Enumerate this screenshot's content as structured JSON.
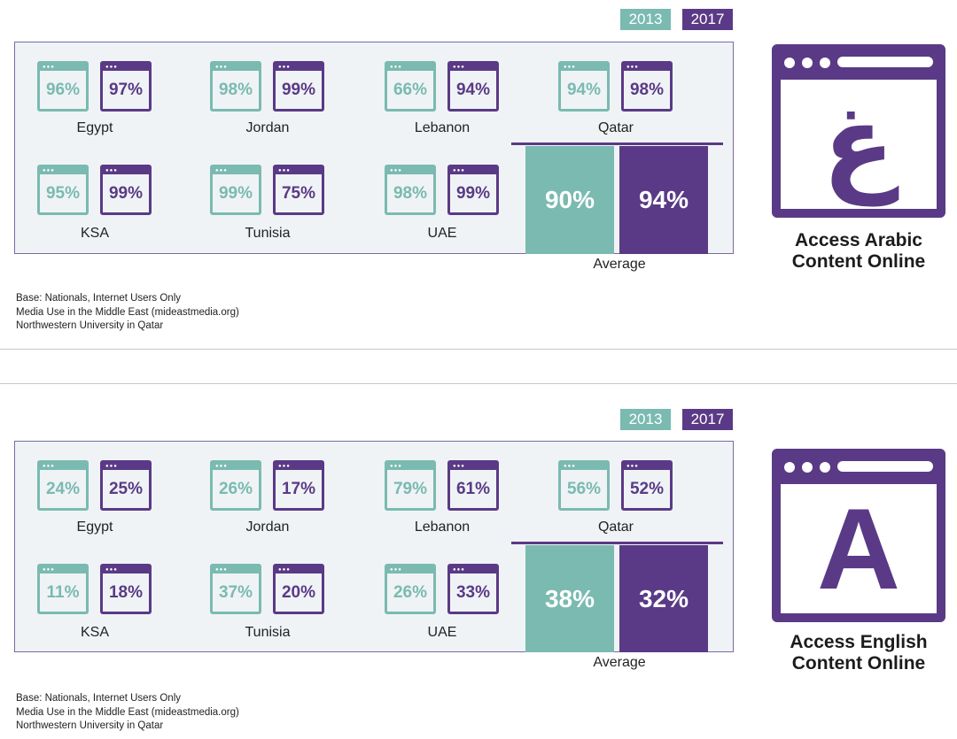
{
  "legend": {
    "year_a": "2013",
    "year_b": "2017"
  },
  "colors": {
    "teal": "#7abab1",
    "purple": "#5a3a86"
  },
  "source_note": [
    "Base: Nationals, Internet Users Only",
    "Media Use in the Middle East (mideastmedia.org)",
    "Northwestern University in Qatar"
  ],
  "chart_data": [
    {
      "type": "bar",
      "title": "Access Arabic Content Online",
      "icon": "arabic-letter-ghain-icon",
      "icon_glyph": "غ",
      "series": [
        {
          "name": "2013"
        },
        {
          "name": "2017"
        }
      ],
      "countries": [
        {
          "name": "Egypt",
          "v2013": "96%",
          "v2017": "97%"
        },
        {
          "name": "Jordan",
          "v2013": "98%",
          "v2017": "99%"
        },
        {
          "name": "Lebanon",
          "v2013": "66%",
          "v2017": "94%"
        },
        {
          "name": "Qatar",
          "v2013": "94%",
          "v2017": "98%"
        },
        {
          "name": "KSA",
          "v2013": "95%",
          "v2017": "99%"
        },
        {
          "name": "Tunisia",
          "v2013": "99%",
          "v2017": "75%"
        },
        {
          "name": "UAE",
          "v2013": "98%",
          "v2017": "99%"
        }
      ],
      "average": {
        "label": "Average",
        "v2013": "90%",
        "v2017": "94%"
      }
    },
    {
      "type": "bar",
      "title": "Access English Content Online",
      "icon": "letter-a-icon",
      "icon_glyph": "A",
      "series": [
        {
          "name": "2013"
        },
        {
          "name": "2017"
        }
      ],
      "countries": [
        {
          "name": "Egypt",
          "v2013": "24%",
          "v2017": "25%"
        },
        {
          "name": "Jordan",
          "v2013": "26%",
          "v2017": "17%"
        },
        {
          "name": "Lebanon",
          "v2013": "79%",
          "v2017": "61%"
        },
        {
          "name": "Qatar",
          "v2013": "56%",
          "v2017": "52%"
        },
        {
          "name": "KSA",
          "v2013": "11%",
          "v2017": "18%"
        },
        {
          "name": "Tunisia",
          "v2013": "37%",
          "v2017": "20%"
        },
        {
          "name": "UAE",
          "v2013": "26%",
          "v2017": "33%"
        }
      ],
      "average": {
        "label": "Average",
        "v2013": "38%",
        "v2017": "32%"
      }
    }
  ]
}
